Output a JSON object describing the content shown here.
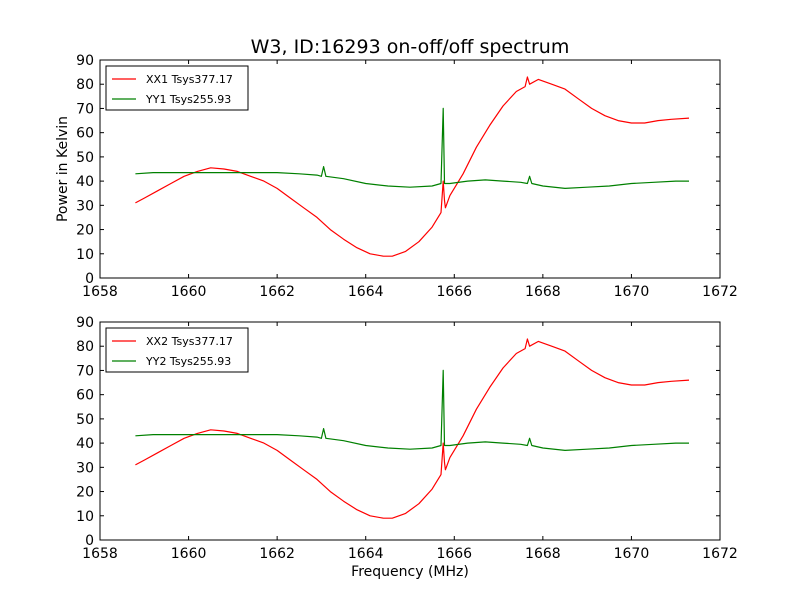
{
  "figure_title": "W3, ID:16293 on-off/off spectrum",
  "chart_data": [
    {
      "type": "line",
      "title": "W3, ID:16293 on-off/off spectrum",
      "xlabel": "",
      "ylabel": "Power in Kelvin",
      "xlim": [
        1658,
        1672
      ],
      "ylim": [
        0,
        90
      ],
      "xticks": [
        "1658",
        "1660",
        "1662",
        "1664",
        "1666",
        "1668",
        "1670",
        "1672"
      ],
      "yticks": [
        "0",
        "10",
        "20",
        "30",
        "40",
        "50",
        "60",
        "70",
        "80",
        "90"
      ],
      "legend_position": "upper-left",
      "grid": false,
      "series": [
        {
          "name": "XX1 Tsys377.17",
          "color": "#ff0000",
          "x": [
            1658.8,
            1659.0,
            1659.3,
            1659.6,
            1659.9,
            1660.2,
            1660.5,
            1660.8,
            1661.1,
            1661.4,
            1661.7,
            1662.0,
            1662.3,
            1662.6,
            1662.9,
            1663.2,
            1663.5,
            1663.8,
            1664.1,
            1664.4,
            1664.6,
            1664.9,
            1665.2,
            1665.5,
            1665.7,
            1665.75,
            1665.78,
            1665.8,
            1665.9,
            1666.2,
            1666.5,
            1666.8,
            1667.1,
            1667.4,
            1667.6,
            1667.65,
            1667.7,
            1667.9,
            1668.2,
            1668.5,
            1668.8,
            1669.1,
            1669.4,
            1669.7,
            1670.0,
            1670.3,
            1670.6,
            1670.9,
            1671.3
          ],
          "y": [
            31,
            33,
            36,
            39,
            42,
            44,
            45.5,
            45,
            44,
            42,
            40,
            37,
            33,
            29,
            25,
            20,
            16,
            12.5,
            10,
            9,
            9,
            11,
            15,
            21,
            27,
            40,
            32,
            29,
            34,
            43,
            54,
            63,
            71,
            77,
            79,
            83,
            80,
            82,
            80,
            78,
            74,
            70,
            67,
            65,
            64,
            64,
            65,
            65.5,
            66
          ]
        },
        {
          "name": "YY1 Tsys255.93",
          "color": "#008000",
          "x": [
            1658.8,
            1659.2,
            1659.6,
            1660.0,
            1660.5,
            1661.0,
            1661.5,
            1662.0,
            1662.5,
            1662.9,
            1663.0,
            1663.05,
            1663.1,
            1663.5,
            1664.0,
            1664.5,
            1665.0,
            1665.5,
            1665.7,
            1665.75,
            1665.78,
            1665.9,
            1666.3,
            1666.7,
            1667.1,
            1667.5,
            1667.65,
            1667.7,
            1667.75,
            1668.0,
            1668.5,
            1669.0,
            1669.5,
            1670.0,
            1670.5,
            1671.0,
            1671.3
          ],
          "y": [
            43,
            43.5,
            43.5,
            43.5,
            43.5,
            43.5,
            43.5,
            43.5,
            43,
            42.5,
            42,
            46,
            42,
            41,
            39,
            38,
            37.5,
            38,
            39,
            70,
            39,
            39,
            40,
            40.5,
            40,
            39.5,
            39,
            42,
            39,
            38,
            37,
            37.5,
            38,
            39,
            39.5,
            40,
            40
          ]
        }
      ]
    },
    {
      "type": "line",
      "title": "",
      "xlabel": "Frequency (MHz)",
      "ylabel": "",
      "xlim": [
        1658,
        1672
      ],
      "ylim": [
        0,
        90
      ],
      "xticks": [
        "1658",
        "1660",
        "1662",
        "1664",
        "1666",
        "1668",
        "1670",
        "1672"
      ],
      "yticks": [
        "0",
        "10",
        "20",
        "30",
        "40",
        "50",
        "60",
        "70",
        "80",
        "90"
      ],
      "legend_position": "upper-left",
      "grid": false,
      "series": [
        {
          "name": "XX2 Tsys377.17",
          "color": "#ff0000",
          "x": [
            1658.8,
            1659.0,
            1659.3,
            1659.6,
            1659.9,
            1660.2,
            1660.5,
            1660.8,
            1661.1,
            1661.4,
            1661.7,
            1662.0,
            1662.3,
            1662.6,
            1662.9,
            1663.2,
            1663.5,
            1663.8,
            1664.1,
            1664.4,
            1664.6,
            1664.9,
            1665.2,
            1665.5,
            1665.7,
            1665.75,
            1665.78,
            1665.8,
            1665.9,
            1666.2,
            1666.5,
            1666.8,
            1667.1,
            1667.4,
            1667.6,
            1667.65,
            1667.7,
            1667.9,
            1668.2,
            1668.5,
            1668.8,
            1669.1,
            1669.4,
            1669.7,
            1670.0,
            1670.3,
            1670.6,
            1670.9,
            1671.3
          ],
          "y": [
            31,
            33,
            36,
            39,
            42,
            44,
            45.5,
            45,
            44,
            42,
            40,
            37,
            33,
            29,
            25,
            20,
            16,
            12.5,
            10,
            9,
            9,
            11,
            15,
            21,
            27,
            40,
            32,
            29,
            34,
            43,
            54,
            63,
            71,
            77,
            79,
            83,
            80,
            82,
            80,
            78,
            74,
            70,
            67,
            65,
            64,
            64,
            65,
            65.5,
            66
          ]
        },
        {
          "name": "YY2 Tsys255.93",
          "color": "#008000",
          "x": [
            1658.8,
            1659.2,
            1659.6,
            1660.0,
            1660.5,
            1661.0,
            1661.5,
            1662.0,
            1662.5,
            1662.9,
            1663.0,
            1663.05,
            1663.1,
            1663.5,
            1664.0,
            1664.5,
            1665.0,
            1665.5,
            1665.7,
            1665.75,
            1665.78,
            1665.9,
            1666.3,
            1666.7,
            1667.1,
            1667.5,
            1667.65,
            1667.7,
            1667.75,
            1668.0,
            1668.5,
            1669.0,
            1669.5,
            1670.0,
            1670.5,
            1671.0,
            1671.3
          ],
          "y": [
            43,
            43.5,
            43.5,
            43.5,
            43.5,
            43.5,
            43.5,
            43.5,
            43,
            42.5,
            42,
            46,
            42,
            41,
            39,
            38,
            37.5,
            38,
            39,
            70,
            39,
            39,
            40,
            40.5,
            40,
            39.5,
            39,
            42,
            39,
            38,
            37,
            37.5,
            38,
            39,
            39.5,
            40,
            40
          ]
        }
      ]
    }
  ]
}
